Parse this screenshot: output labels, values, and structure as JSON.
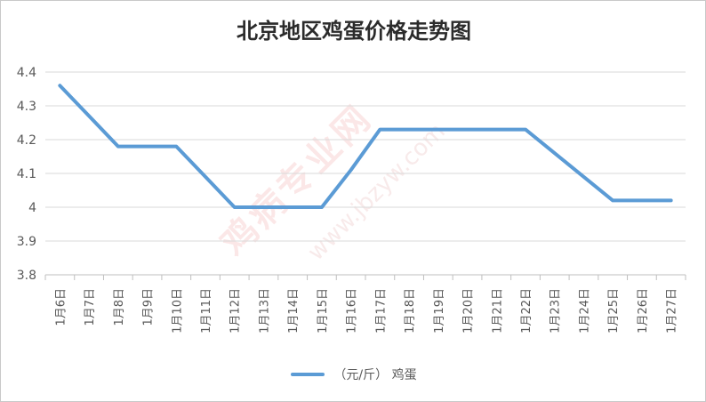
{
  "chart_data": {
    "type": "line",
    "title": "北京地区鸡蛋价格走势图",
    "categories": [
      "1月6日",
      "1月7日",
      "1月8日",
      "1月9日",
      "1月10日",
      "1月11日",
      "1月12日",
      "1月13日",
      "1月14日",
      "1月15日",
      "1月16日",
      "1月17日",
      "1月18日",
      "1月19日",
      "1月20日",
      "1月21日",
      "1月22日",
      "1月23日",
      "1月24日",
      "1月25日",
      "1月26日",
      "1月27日"
    ],
    "series": [
      {
        "name": "（元/斤） 鸡蛋",
        "color": "#5b9bd5",
        "values": [
          4.36,
          4.27,
          4.18,
          4.18,
          4.18,
          4.09,
          4.0,
          4.0,
          4.0,
          4.0,
          4.11,
          4.23,
          4.23,
          4.23,
          4.23,
          4.23,
          4.23,
          4.16,
          4.09,
          4.02,
          4.02,
          4.02
        ]
      }
    ],
    "ylim": [
      3.8,
      4.4
    ],
    "yticks": [
      "3.8",
      "3.9",
      "4",
      "4.1",
      "4.2",
      "4.3",
      "4.4"
    ],
    "grid": true,
    "legend": "bottom"
  },
  "watermark": {
    "text": "鸡病专业网",
    "url": "www.jbzyw.com"
  }
}
